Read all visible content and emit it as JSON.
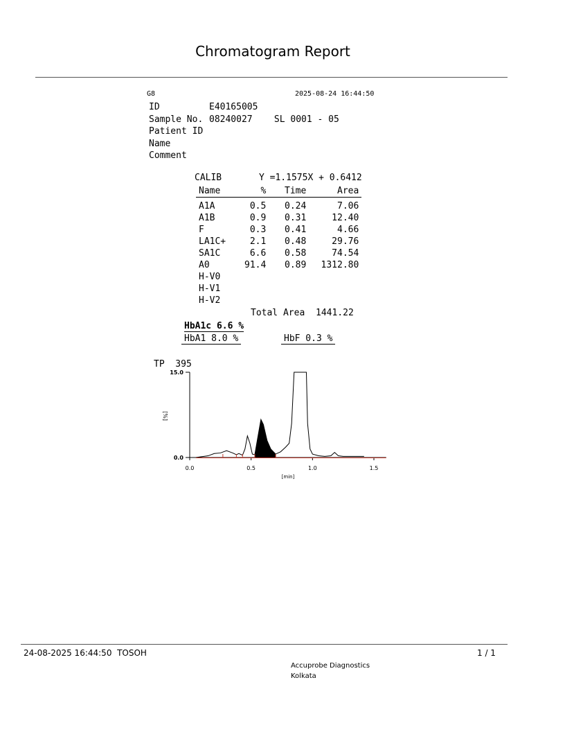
{
  "title": "Chromatogram Report",
  "report": {
    "instrument": "G8",
    "datetime": "2025-08-24 16:44:50",
    "fields": [
      {
        "label": "ID",
        "value": "E40165005"
      },
      {
        "label": "Sample No.",
        "value": "08240027    SL 0001 - 05"
      },
      {
        "label": "Patient ID",
        "value": ""
      },
      {
        "label": "Name",
        "value": ""
      },
      {
        "label": "Comment",
        "value": ""
      }
    ],
    "calib_label": "CALIB",
    "calib_equation": "Y =1.1575X + 0.6412",
    "columns": [
      "Name",
      "%",
      "Time",
      "Area"
    ],
    "rows": [
      [
        "A1A",
        "0.5",
        "0.24",
        "7.06"
      ],
      [
        "A1B",
        "0.9",
        "0.31",
        "12.40"
      ],
      [
        "F",
        "0.3",
        "0.41",
        "4.66"
      ],
      [
        "LA1C+",
        "2.1",
        "0.48",
        "29.76"
      ],
      [
        "SA1C",
        "6.6",
        "0.58",
        "74.54"
      ],
      [
        "A0",
        "91.4",
        "0.89",
        "1312.80"
      ],
      [
        "H-V0",
        "",
        "",
        ""
      ],
      [
        "H-V1",
        "",
        "",
        ""
      ],
      [
        "H-V2",
        "",
        "",
        ""
      ]
    ],
    "total_area_label": "Total Area",
    "total_area": "1441.22",
    "hba1c": "HbA1c 6.6 %",
    "hba1": "HbA1 8.0 %",
    "hbf": "HbF 0.3 %"
  },
  "chart_data": {
    "type": "line",
    "title": "TP  395",
    "xlabel": "[min]",
    "ylabel": "[%]",
    "xlim": [
      0,
      1.6
    ],
    "ylim": [
      0,
      15
    ],
    "xticks": [
      "0.0",
      "0.5",
      "1.0",
      "1.5"
    ],
    "yticks": [
      "0.0",
      "15.0"
    ],
    "baseline_color": "#c0392b",
    "x": [
      0.05,
      0.15,
      0.2,
      0.25,
      0.3,
      0.35,
      0.38,
      0.4,
      0.43,
      0.45,
      0.47,
      0.49,
      0.51,
      0.53,
      0.55,
      0.58,
      0.6,
      0.63,
      0.66,
      0.7,
      0.74,
      0.78,
      0.81,
      0.83,
      0.85,
      0.95,
      0.96,
      0.98,
      1.0,
      1.05,
      1.1,
      1.15,
      1.18,
      1.21,
      1.25,
      1.42
    ],
    "y": [
      0,
      0.3,
      0.7,
      0.8,
      1.2,
      0.8,
      0.5,
      0.7,
      0.4,
      1.5,
      3.8,
      2.5,
      0.6,
      0.5,
      3,
      6.7,
      5.8,
      3,
      1.5,
      0.6,
      1.0,
      1.8,
      2.5,
      6,
      15,
      15,
      6,
      1.5,
      0.6,
      0.3,
      0.2,
      0.3,
      0.9,
      0.3,
      0.2,
      0.2
    ],
    "shaded_range": [
      0.53,
      0.7
    ],
    "peak_marks": [
      0.27,
      0.38,
      0.43,
      0.53,
      0.7
    ]
  },
  "footer": {
    "left": "24-08-2025 16:44:50  TOSOH",
    "page": "1 / 1",
    "lab": "Accuprobe Diagnostics",
    "city": "Kolkata"
  }
}
